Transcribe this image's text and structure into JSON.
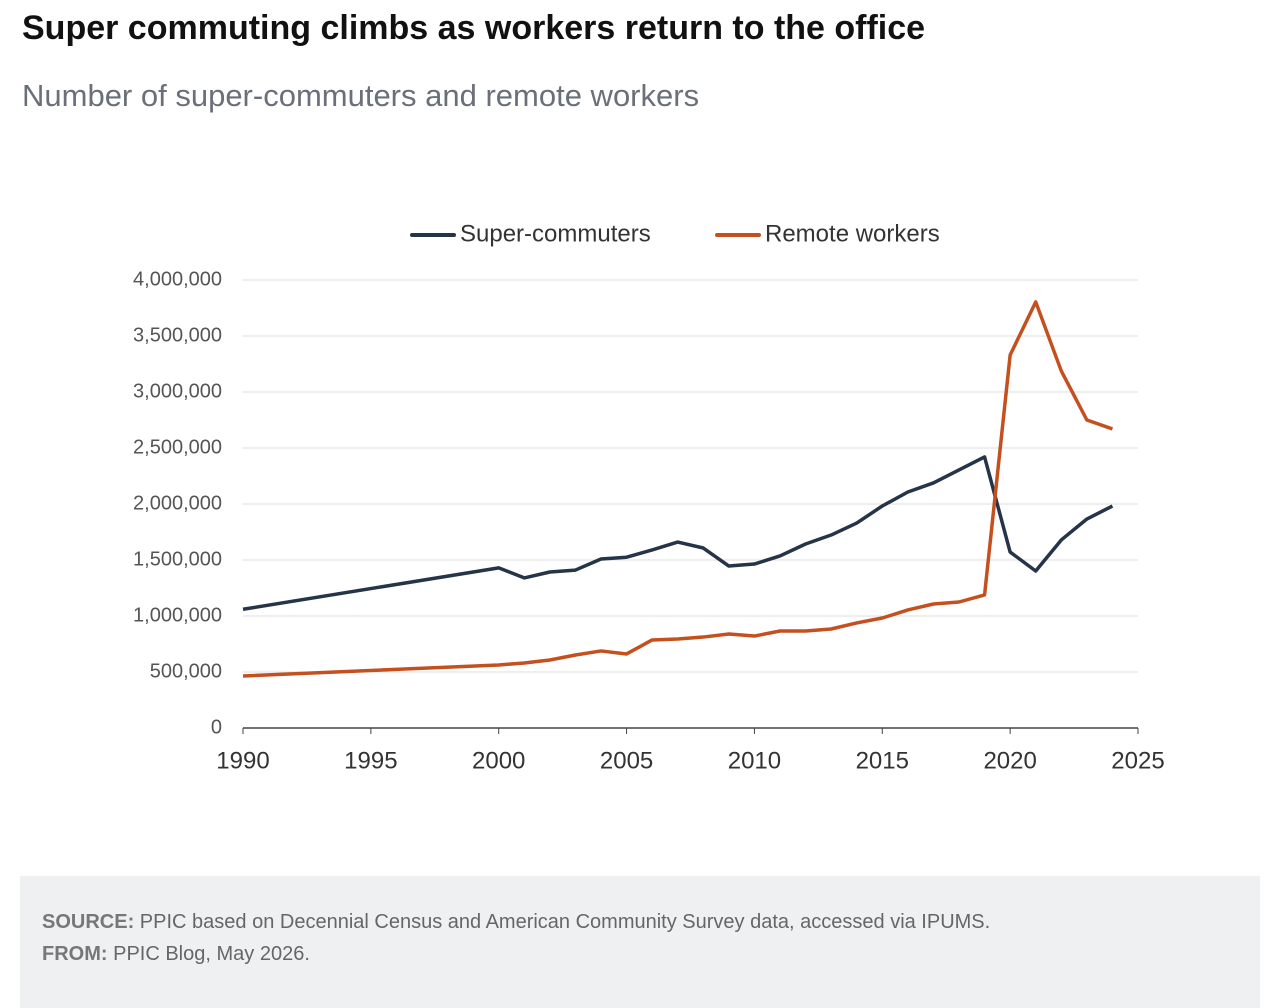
{
  "chart_data": {
    "type": "line",
    "title": "Super commuting climbs as workers return to the office",
    "subtitle": "Number of super-commuters and remote workers",
    "x": [
      1990,
      2000,
      2001,
      2002,
      2003,
      2004,
      2005,
      2006,
      2007,
      2008,
      2009,
      2010,
      2011,
      2012,
      2013,
      2014,
      2015,
      2016,
      2017,
      2018,
      2019,
      2020,
      2021,
      2022,
      2023,
      2024
    ],
    "series": [
      {
        "name": "Super-commuters",
        "color": "#253447",
        "values": [
          1060000,
          1430000,
          1340000,
          1393000,
          1410000,
          1509000,
          1525000,
          1590000,
          1660000,
          1607000,
          1446000,
          1464000,
          1536000,
          1643000,
          1723000,
          1830000,
          1982000,
          2107000,
          2188000,
          2304000,
          2420000,
          1571000,
          1402000,
          1679000,
          1866000,
          1982000
        ]
      },
      {
        "name": "Remote workers",
        "color": "#c4501f",
        "values": [
          464000,
          563000,
          580000,
          607000,
          652000,
          688000,
          661000,
          786000,
          795000,
          812000,
          839000,
          821000,
          866000,
          866000,
          884000,
          938000,
          982000,
          1054000,
          1107000,
          1125000,
          1188000,
          3330000,
          3804000,
          3188000,
          2750000,
          2670000
        ]
      }
    ],
    "xlim": [
      1990,
      2025
    ],
    "xticks": [
      1990,
      1995,
      2000,
      2005,
      2010,
      2015,
      2020,
      2025
    ],
    "ylim": [
      0,
      4000000
    ],
    "yticks": [
      0,
      {
        "value": 500000,
        "label": "500,000"
      },
      {
        "value": 1000000,
        "label": "1,000,000"
      },
      {
        "value": 1500000,
        "label": "1,500,000"
      },
      {
        "value": 2000000,
        "label": "2,000,000"
      },
      {
        "value": 2500000,
        "label": "2,500,000"
      },
      {
        "value": 3000000,
        "label": "3,000,000"
      },
      {
        "value": 3500000,
        "label": "3,500,000"
      },
      {
        "value": 4000000,
        "label": "4,000,000"
      }
    ],
    "grid": true,
    "legend": "top"
  },
  "footer": {
    "source": {
      "label": "SOURCE:",
      "text": "PPIC based on Decennial Census and American Community Survey data, accessed via IPUMS."
    },
    "from": {
      "label": "FROM:",
      "text": "PPIC Blog, May 2026."
    }
  }
}
